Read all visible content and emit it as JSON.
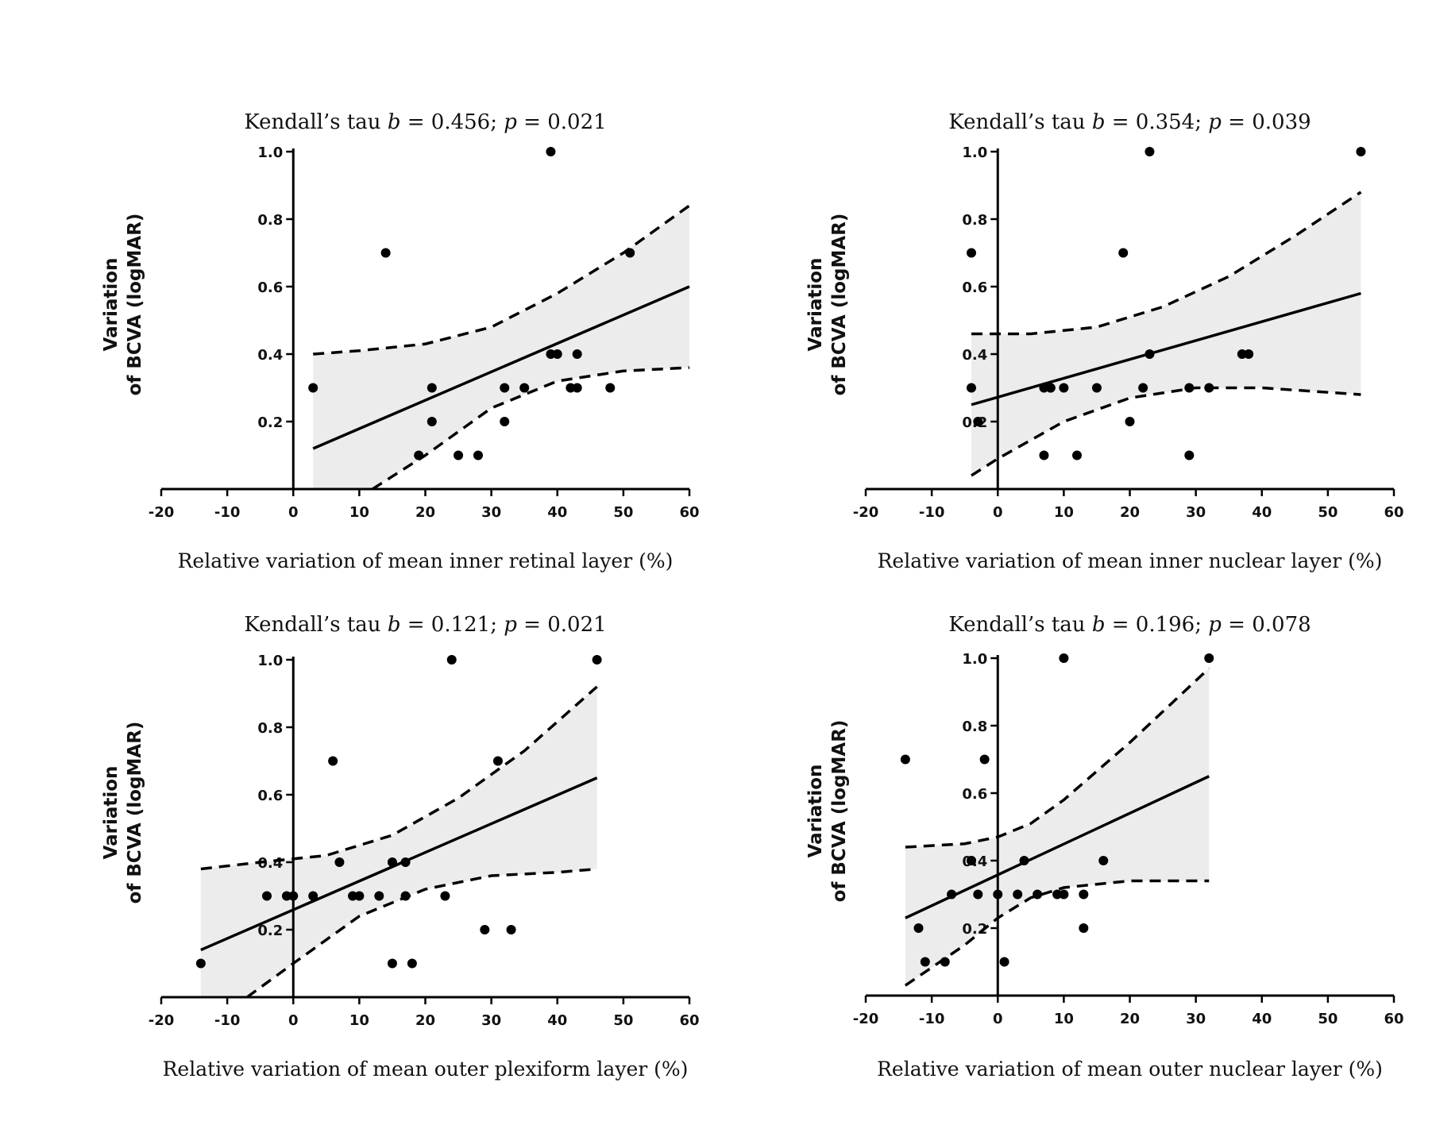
{
  "figure_title": "",
  "chart_data": [
    {
      "type": "scatter",
      "title_parts": [
        "Kendall’s tau ",
        "b",
        " = 0.456; ",
        "p",
        " = 0.021"
      ],
      "xlabel": "Relative variation of mean inner retinal layer (%)",
      "ylabel_lines": [
        "Variation",
        "of BCVA (logMAR)"
      ],
      "xlim": [
        -20,
        60
      ],
      "ylim": [
        0,
        1.0
      ],
      "xticks": [
        -20,
        -10,
        0,
        10,
        20,
        30,
        40,
        50,
        60
      ],
      "yticks": [
        0.2,
        0.4,
        0.6,
        0.8,
        1.0
      ],
      "x": [
        3,
        14,
        19,
        21,
        21,
        25,
        28,
        32,
        32,
        35,
        39,
        39,
        40,
        42,
        43,
        43,
        48,
        51
      ],
      "y": [
        0.3,
        0.7,
        0.1,
        0.3,
        0.2,
        0.1,
        0.1,
        0.3,
        0.2,
        0.3,
        1.0,
        0.4,
        0.4,
        0.3,
        0.3,
        0.4,
        0.3,
        0.7
      ],
      "fit_line": {
        "x": [
          3,
          60
        ],
        "y": [
          0.12,
          0.6
        ]
      },
      "ci_upper": {
        "x": [
          3,
          10,
          20,
          30,
          40,
          50,
          60
        ],
        "y": [
          0.4,
          0.41,
          0.43,
          0.48,
          0.58,
          0.7,
          0.84
        ]
      },
      "ci_lower": {
        "x": [
          12,
          20,
          30,
          40,
          50,
          60
        ],
        "y": [
          0.0,
          0.1,
          0.24,
          0.32,
          0.35,
          0.36
        ]
      }
    },
    {
      "type": "scatter",
      "title_parts": [
        "Kendall’s tau ",
        "b",
        " = 0.354; ",
        "p",
        " = 0.039"
      ],
      "xlabel": "Relative variation of mean inner nuclear layer (%)",
      "ylabel_lines": [
        "Variation",
        "of BCVA (logMAR)"
      ],
      "xlim": [
        -20,
        60
      ],
      "ylim": [
        0,
        1.0
      ],
      "xticks": [
        -20,
        -10,
        0,
        10,
        20,
        30,
        40,
        50,
        60
      ],
      "yticks": [
        0.2,
        0.4,
        0.6,
        0.8,
        1.0
      ],
      "x": [
        -4,
        -4,
        -3,
        7,
        7,
        8,
        8,
        10,
        12,
        15,
        19,
        20,
        22,
        23,
        23,
        29,
        29,
        32,
        37,
        38,
        55
      ],
      "y": [
        0.7,
        0.3,
        0.2,
        0.3,
        0.1,
        0.3,
        0.3,
        0.3,
        0.1,
        0.3,
        0.7,
        0.2,
        0.3,
        1.0,
        0.4,
        0.3,
        0.1,
        0.3,
        0.4,
        0.4,
        1.0
      ],
      "fit_line": {
        "x": [
          -4,
          55
        ],
        "y": [
          0.25,
          0.58
        ]
      },
      "ci_upper": {
        "x": [
          -4,
          5,
          15,
          25,
          35,
          45,
          55
        ],
        "y": [
          0.46,
          0.46,
          0.48,
          0.54,
          0.63,
          0.75,
          0.88
        ]
      },
      "ci_lower": {
        "x": [
          -4,
          0,
          10,
          20,
          30,
          40,
          55
        ],
        "y": [
          0.04,
          0.09,
          0.2,
          0.27,
          0.3,
          0.3,
          0.28
        ]
      }
    },
    {
      "type": "scatter",
      "title_parts": [
        "Kendall’s tau ",
        "b",
        " = 0.121; ",
        "p",
        " = 0.021"
      ],
      "xlabel": "Relative variation of mean outer plexiform layer (%)",
      "ylabel_lines": [
        "Variation",
        "of BCVA (logMAR)"
      ],
      "xlim": [
        -20,
        60
      ],
      "ylim": [
        0,
        1.0
      ],
      "xticks": [
        -20,
        -10,
        0,
        10,
        20,
        30,
        40,
        50,
        60
      ],
      "yticks": [
        0.2,
        0.4,
        0.6,
        0.8,
        1.0
      ],
      "x": [
        -14,
        -4,
        -1,
        0,
        3,
        6,
        7,
        9,
        10,
        13,
        15,
        15,
        17,
        17,
        18,
        23,
        24,
        29,
        31,
        33,
        46
      ],
      "y": [
        0.1,
        0.3,
        0.3,
        0.3,
        0.3,
        0.7,
        0.4,
        0.3,
        0.3,
        0.3,
        0.4,
        0.1,
        0.4,
        0.3,
        0.1,
        0.3,
        1.0,
        0.2,
        0.7,
        0.2,
        1.0
      ],
      "fit_line": {
        "x": [
          -14,
          46
        ],
        "y": [
          0.14,
          0.65
        ]
      },
      "ci_upper": {
        "x": [
          -14,
          -5,
          5,
          15,
          25,
          35,
          46
        ],
        "y": [
          0.38,
          0.4,
          0.42,
          0.48,
          0.59,
          0.73,
          0.92
        ]
      },
      "ci_lower": {
        "x": [
          -7,
          0,
          10,
          20,
          30,
          40,
          46
        ],
        "y": [
          0.0,
          0.1,
          0.24,
          0.32,
          0.36,
          0.37,
          0.38
        ]
      }
    },
    {
      "type": "scatter",
      "title_parts": [
        "Kendall’s tau ",
        "b",
        " = 0.196; ",
        "p",
        " = 0.078"
      ],
      "xlabel": "Relative variation of mean outer nuclear layer (%)",
      "ylabel_lines": [
        "Variation",
        "of BCVA (logMAR)"
      ],
      "xlim": [
        -20,
        60
      ],
      "ylim": [
        0,
        1.0
      ],
      "xticks": [
        -20,
        -10,
        0,
        10,
        20,
        30,
        40,
        50,
        60
      ],
      "yticks": [
        0.2,
        0.4,
        0.6,
        0.8,
        1.0
      ],
      "x": [
        -14,
        -12,
        -11,
        -8,
        -7,
        -4,
        -4,
        -3,
        -2,
        0,
        1,
        3,
        4,
        6,
        9,
        10,
        10,
        13,
        13,
        16,
        32
      ],
      "y": [
        0.7,
        0.2,
        0.1,
        0.1,
        0.3,
        0.4,
        0.4,
        0.3,
        0.7,
        0.3,
        0.1,
        0.3,
        0.4,
        0.3,
        0.3,
        1.0,
        0.3,
        0.3,
        0.2,
        0.4,
        1.0
      ],
      "fit_line": {
        "x": [
          -14,
          32
        ],
        "y": [
          0.23,
          0.65
        ]
      },
      "ci_upper": {
        "x": [
          -14,
          -5,
          0,
          5,
          10,
          20,
          32
        ],
        "y": [
          0.44,
          0.45,
          0.47,
          0.51,
          0.58,
          0.75,
          0.97
        ]
      },
      "ci_lower": {
        "x": [
          -14,
          -5,
          0,
          5,
          10,
          20,
          32
        ],
        "y": [
          0.03,
          0.15,
          0.23,
          0.29,
          0.32,
          0.34,
          0.34
        ]
      }
    }
  ]
}
